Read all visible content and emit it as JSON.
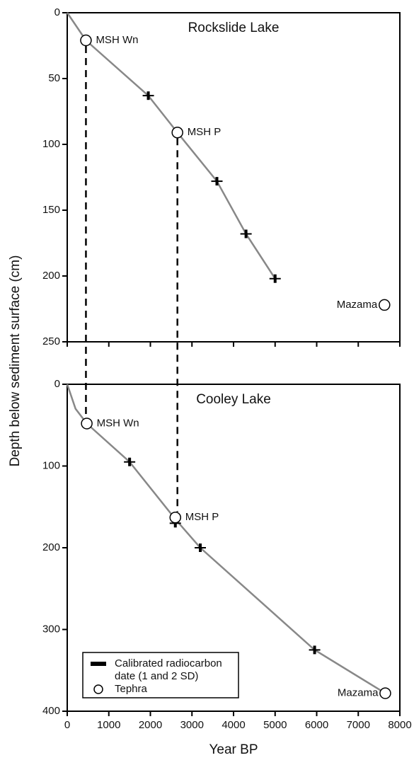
{
  "xlabel": "Year BP",
  "ylabel": "Depth below sediment surface (cm)",
  "xlim": [
    0,
    8000
  ],
  "xticks": [
    0,
    1000,
    2000,
    3000,
    4000,
    5000,
    6000,
    7000,
    8000
  ],
  "legend": [
    {
      "lines": [
        "Calibrated radiocarbon",
        "date (1 and 2 SD)"
      ]
    },
    {
      "lines": [
        "Tephra"
      ]
    }
  ],
  "chart_data": [
    {
      "type": "scatter",
      "title": "Rockslide Lake",
      "y_inverted": true,
      "ylim": [
        0,
        250
      ],
      "yticks": [
        0,
        50,
        100,
        150,
        200,
        250
      ],
      "curve": {
        "x": [
          0,
          450,
          1950,
          2650,
          3600,
          4300,
          5000
        ],
        "y": [
          0,
          21,
          63,
          91,
          128,
          168,
          202
        ]
      },
      "dates": {
        "x": [
          1950,
          3600,
          4300,
          5000
        ],
        "y": [
          63,
          128,
          168,
          202
        ]
      },
      "tephra": {
        "labels": [
          "MSH Wn",
          "MSH P",
          "Mazama"
        ],
        "x": [
          450,
          2650,
          7630
        ],
        "y": [
          21,
          91,
          222
        ]
      }
    },
    {
      "type": "scatter",
      "title": "Cooley Lake",
      "y_inverted": true,
      "ylim": [
        0,
        400
      ],
      "yticks": [
        0,
        100,
        200,
        300,
        400
      ],
      "curve": {
        "x": [
          0,
          200,
          470,
          1500,
          2600,
          3200,
          5950,
          7650
        ],
        "y": [
          0,
          30,
          48,
          95,
          165,
          200,
          325,
          378
        ]
      },
      "dates": {
        "x": [
          1500,
          2600,
          3200,
          5950
        ],
        "y": [
          95,
          170,
          200,
          325
        ]
      },
      "tephra": {
        "labels": [
          "MSH Wn",
          "MSH P",
          "Mazama"
        ],
        "x": [
          470,
          2600,
          7650
        ],
        "y": [
          48,
          163,
          378
        ]
      }
    }
  ]
}
